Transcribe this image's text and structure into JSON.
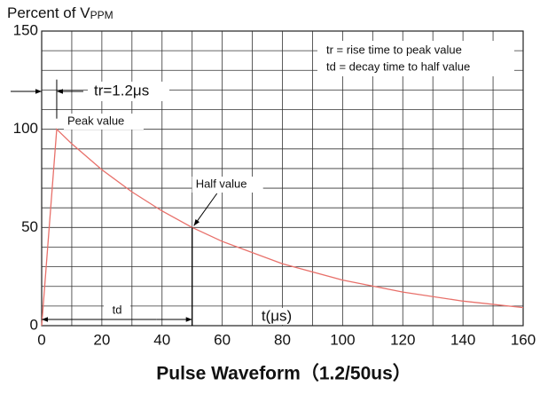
{
  "chart_data": {
    "type": "line",
    "title": "Pulse Waveform（1.2/50us）",
    "y_label": "Percent of V",
    "y_label_subscript": "PPM",
    "x_label": "t(μs)",
    "x": [
      0,
      5,
      10,
      20,
      30,
      40,
      50,
      60,
      80,
      100,
      120,
      140,
      160
    ],
    "values": [
      0,
      100,
      92.6,
      79.4,
      68.1,
      58.4,
      50,
      42.9,
      31.5,
      23.2,
      17.1,
      12.5,
      9.2
    ],
    "color": "#e8706a",
    "xlim": [
      0,
      160
    ],
    "ylim": [
      0,
      150
    ],
    "xticks": [
      0,
      20,
      40,
      60,
      80,
      100,
      120,
      140,
      160
    ],
    "yticks": [
      0,
      50,
      100,
      150
    ],
    "x_minor_ticks": [
      10,
      30,
      50,
      70,
      90,
      110,
      130,
      150
    ],
    "y_minor_ticks": [
      10,
      20,
      30,
      40,
      60,
      70,
      80,
      90,
      110,
      120,
      130,
      140
    ],
    "grid": true,
    "annotations": {
      "rise": "tr=1.2μs",
      "peak": "Peak value",
      "decay": "td",
      "half": "Half value",
      "legend_rise": "tr = rise time to peak value",
      "legend_decay": "td = decay time to half value"
    }
  }
}
